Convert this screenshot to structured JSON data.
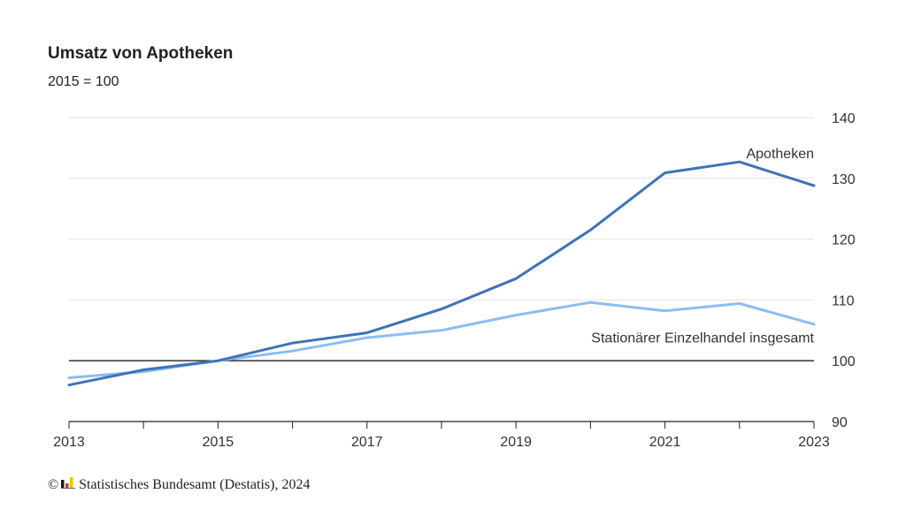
{
  "title": "Umsatz von Apotheken",
  "subtitle": "2015 = 100",
  "footer": {
    "copyright_symbol": "©",
    "source": "Statistisches Bundesamt (Destatis), 2024",
    "logo_icon": "destatis-logo-icon"
  },
  "chart_data": {
    "type": "line",
    "title": "Umsatz von Apotheken",
    "subtitle": "2015 = 100",
    "x": [
      2013,
      2014,
      2015,
      2016,
      2017,
      2018,
      2019,
      2020,
      2021,
      2022,
      2023
    ],
    "x_ticks": [
      "2013",
      "2015",
      "2017",
      "2019",
      "2021",
      "2023"
    ],
    "y_ticks": [
      "90",
      "100",
      "110",
      "120",
      "130",
      "140"
    ],
    "ylim": [
      90,
      140
    ],
    "xlim": [
      2013,
      2023
    ],
    "y_axis_side": "right",
    "grid": true,
    "reference_line": 100,
    "series": [
      {
        "name": "Apotheken",
        "color": "#3e73b8",
        "values": [
          96.0,
          98.5,
          100.0,
          102.9,
          104.6,
          108.5,
          113.5,
          121.5,
          130.9,
          132.7,
          128.8
        ]
      },
      {
        "name": "Stationärer Einzelhandel insgesamt",
        "color": "#8bbdf2",
        "values": [
          97.2,
          98.2,
          100.0,
          101.6,
          103.8,
          105.0,
          107.5,
          109.6,
          108.2,
          109.4,
          106.0
        ]
      }
    ]
  }
}
